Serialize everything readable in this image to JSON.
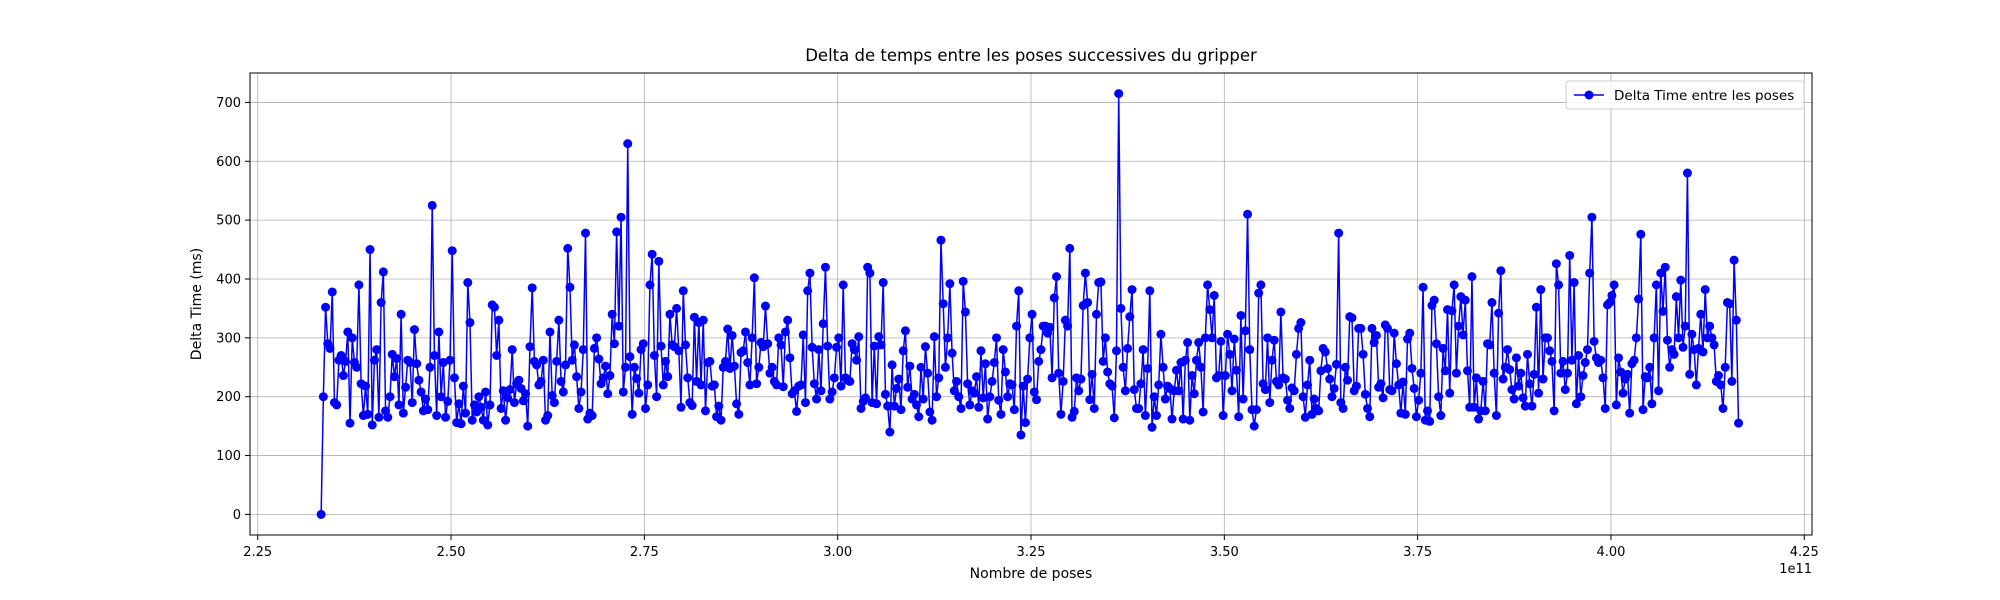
{
  "chart_data": {
    "type": "line",
    "title": "Delta de temps entre les poses successives du gripper",
    "xlabel": "Nombre de poses",
    "ylabel": "Delta Time (ms)",
    "x_offset_label": "1e11",
    "x_range": [
      2.332,
      4.165
    ],
    "xlim": [
      2.24,
      4.26
    ],
    "ylim": [
      -35,
      750
    ],
    "x_ticks": [
      2.25,
      2.5,
      2.75,
      3.0,
      3.25,
      3.5,
      3.75,
      4.0,
      4.25
    ],
    "x_tick_labels": [
      "2.25",
      "2.50",
      "2.75",
      "3.00",
      "3.25",
      "3.50",
      "3.75",
      "4.00",
      "4.25"
    ],
    "y_ticks": [
      0,
      100,
      200,
      300,
      400,
      500,
      600,
      700
    ],
    "y_tick_labels": [
      "0",
      "100",
      "200",
      "300",
      "400",
      "500",
      "600",
      "700"
    ],
    "grid": true,
    "legend_position": "top-right",
    "color": "#0000ff",
    "marker": "circle",
    "series": [
      {
        "name": "Delta Time entre les poses",
        "values": [
          0,
          200,
          352,
          290,
          282,
          378,
          190,
          186,
          262,
          270,
          236,
          260,
          310,
          155,
          300,
          258,
          250,
          390,
          222,
          168,
          218,
          170,
          450,
          152,
          262,
          280,
          165,
          360,
          412,
          176,
          165,
          200,
          272,
          234,
          265,
          186,
          340,
          172,
          216,
          262,
          258,
          190,
          314,
          256,
          228,
          208,
          176,
          196,
          178,
          250,
          525,
          270,
          168,
          310,
          200,
          258,
          165,
          192,
          262,
          448,
          232,
          156,
          188,
          154,
          218,
          172,
          394,
          326,
          160,
          186,
          174,
          200,
          182,
          160,
          208,
          152,
          186,
          356,
          352,
          270,
          330,
          180,
          210,
          160,
          198,
          212,
          280,
          190,
          222,
          228,
          214,
          193,
          205,
          150,
          285,
          385,
          260,
          254,
          220,
          226,
          262,
          160,
          168,
          310,
          202,
          190,
          260,
          330,
          226,
          208,
          254,
          452,
          386,
          262,
          288,
          234,
          180,
          208,
          280,
          478,
          162,
          172,
          168,
          282,
          300,
          264,
          222,
          232,
          252,
          205,
          236,
          340,
          290,
          480,
          320,
          505,
          208,
          250,
          630,
          268,
          170,
          250,
          231,
          206,
          280,
          290,
          180,
          220,
          390,
          442,
          270,
          200,
          430,
          286,
          220,
          260,
          234,
          340,
          288,
          285,
          350,
          278,
          182,
          380,
          288,
          232,
          190,
          185,
          335,
          226,
          326,
          220,
          330,
          176,
          258,
          260,
          218,
          220,
          166,
          184,
          160,
          250,
          260,
          315,
          248,
          304,
          252,
          188,
          170,
          275,
          278,
          310,
          258,
          220,
          300,
          402,
          222,
          250,
          292,
          285,
          354,
          290,
          240,
          250,
          226,
          220,
          300,
          288,
          217,
          310,
          330,
          266,
          205,
          210,
          175,
          218,
          220,
          305,
          190,
          380,
          410,
          284,
          222,
          196,
          280,
          210,
          324,
          420,
          286,
          196,
          208,
          232,
          284,
          300,
          218,
          390,
          232,
          228,
          226,
          290,
          280,
          262,
          302,
          180,
          192,
          198,
          420,
          410,
          190,
          286,
          188,
          302,
          288,
          394,
          204,
          184,
          140,
          254,
          184,
          214,
          230,
          178,
          278,
          312,
          216,
          252,
          196,
          204,
          186,
          166,
          250,
          196,
          285,
          240,
          174,
          160,
          302,
          200,
          232,
          466,
          358,
          250,
          300,
          392,
          274,
          210,
          226,
          200,
          180,
          396,
          344,
          222,
          186,
          210,
          206,
          234,
          182,
          278,
          198,
          256,
          162,
          200,
          226,
          258,
          300,
          194,
          170,
          280,
          242,
          200,
          222,
          220,
          178,
          320,
          380,
          135,
          218,
          156,
          230,
          300,
          340,
          208,
          195,
          260,
          280,
          320,
          320,
          308,
          318,
          232,
          368,
          404,
          240,
          170,
          226,
          330,
          320,
          452,
          165,
          175,
          232,
          210,
          230,
          355,
          410,
          360,
          195,
          238,
          180,
          340,
          394,
          395,
          260,
          300,
          242,
          222,
          218,
          164,
          278,
          715,
          350,
          250,
          210,
          282,
          336,
          382,
          212,
          180,
          180,
          222,
          280,
          168,
          248,
          380,
          148,
          200,
          168,
          220,
          306,
          250,
          196,
          218,
          214,
          162,
          210,
          245,
          210,
          258,
          162,
          262,
          292,
          160,
          236,
          205,
          262,
          292,
          250,
          174,
          300,
          390,
          348,
          300,
          372,
          232,
          236,
          294,
          168,
          236,
          306,
          272,
          210,
          298,
          245,
          166,
          338,
          196,
          312,
          510,
          280,
          178,
          150,
          178,
          376,
          390,
          222,
          212,
          300,
          190,
          262,
          296,
          226,
          220,
          344,
          232,
          230,
          194,
          180,
          215,
          210,
          272,
          316,
          326,
          200,
          165,
          220,
          262,
          170,
          196,
          180,
          176,
          244,
          282,
          276,
          248,
          230,
          200,
          214,
          255,
          478,
          190,
          180,
          250,
          228,
          336,
          334,
          210,
          218,
          316,
          316,
          272,
          204,
          180,
          166,
          316,
          292,
          304,
          216,
          222,
          198,
          322,
          316,
          212,
          210,
          308,
          256,
          220,
          172,
          225,
          170,
          298,
          308,
          248,
          214,
          166,
          194,
          240,
          386,
          160,
          176,
          158,
          355,
          364,
          290,
          200,
          168,
          282,
          244,
          348,
          206,
          346,
          390,
          240,
          320,
          370,
          305,
          364,
          244,
          182,
          404,
          182,
          232,
          162,
          176,
          226,
          176,
          290,
          288,
          360,
          240,
          168,
          342,
          414,
          230,
          250,
          280,
          246,
          212,
          196,
          266,
          218,
          240,
          198,
          184,
          272,
          222,
          184,
          238,
          352,
          206,
          382,
          230,
          300,
          300,
          278,
          260,
          176,
          426,
          390,
          240,
          260,
          212,
          240,
          440,
          262,
          394,
          188,
          270,
          200,
          236,
          258,
          280,
          410,
          505,
          294,
          266,
          258,
          262,
          232,
          180,
          356,
          360,
          372,
          390,
          186,
          266,
          242,
          206,
          230,
          238,
          172,
          256,
          262,
          300,
          366,
          476,
          178,
          234,
          232,
          250,
          188,
          300,
          390,
          210,
          410,
          345,
          420,
          296,
          250,
          280,
          272,
          370,
          300,
          398,
          284,
          320,
          580,
          238,
          306,
          280,
          220,
          282,
          340,
          276,
          382,
          300,
          320,
          300,
          288,
          226,
          236,
          220,
          180,
          250,
          360,
          358,
          226,
          432,
          330,
          155
        ]
      }
    ]
  }
}
